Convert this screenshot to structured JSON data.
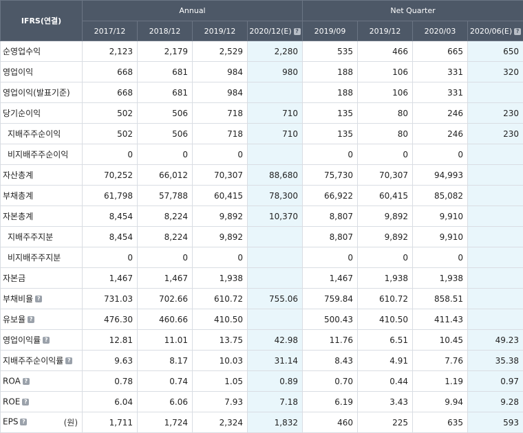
{
  "header": {
    "corner_label": "IFRS(연결)",
    "group_annual": "Annual",
    "group_quarter": "Net Quarter",
    "periods": [
      {
        "label": "2017/12",
        "estimate": false
      },
      {
        "label": "2018/12",
        "estimate": false
      },
      {
        "label": "2019/12",
        "estimate": false
      },
      {
        "label": "2020/12(E)",
        "estimate": true
      },
      {
        "label": "2019/09",
        "estimate": false
      },
      {
        "label": "2019/12",
        "estimate": false
      },
      {
        "label": "2020/03",
        "estimate": false
      },
      {
        "label": "2020/06(E)",
        "estimate": true
      }
    ]
  },
  "rows": [
    {
      "label": "순영업수익",
      "indent": false,
      "help": false,
      "unit": "",
      "values": [
        "2,123",
        "2,179",
        "2,529",
        "2,280",
        "535",
        "466",
        "665",
        "650"
      ]
    },
    {
      "label": "영업이익",
      "indent": false,
      "help": false,
      "unit": "",
      "values": [
        "668",
        "681",
        "984",
        "980",
        "188",
        "106",
        "331",
        "320"
      ]
    },
    {
      "label": "영업이익(발표기준)",
      "indent": false,
      "help": false,
      "unit": "",
      "values": [
        "668",
        "681",
        "984",
        "",
        "188",
        "106",
        "331",
        ""
      ]
    },
    {
      "label": "당기순이익",
      "indent": false,
      "help": false,
      "unit": "",
      "values": [
        "502",
        "506",
        "718",
        "710",
        "135",
        "80",
        "246",
        "230"
      ]
    },
    {
      "label": "지배주주순이익",
      "indent": true,
      "help": false,
      "unit": "",
      "values": [
        "502",
        "506",
        "718",
        "710",
        "135",
        "80",
        "246",
        "230"
      ]
    },
    {
      "label": "비지배주주순이익",
      "indent": true,
      "help": false,
      "unit": "",
      "values": [
        "0",
        "0",
        "0",
        "",
        "0",
        "0",
        "0",
        ""
      ]
    },
    {
      "label": "자산총계",
      "indent": false,
      "help": false,
      "unit": "",
      "values": [
        "70,252",
        "66,012",
        "70,307",
        "88,680",
        "75,730",
        "70,307",
        "94,993",
        ""
      ]
    },
    {
      "label": "부채총계",
      "indent": false,
      "help": false,
      "unit": "",
      "values": [
        "61,798",
        "57,788",
        "60,415",
        "78,300",
        "66,922",
        "60,415",
        "85,082",
        ""
      ]
    },
    {
      "label": "자본총계",
      "indent": false,
      "help": false,
      "unit": "",
      "values": [
        "8,454",
        "8,224",
        "9,892",
        "10,370",
        "8,807",
        "9,892",
        "9,910",
        ""
      ]
    },
    {
      "label": "지배주주지분",
      "indent": true,
      "help": false,
      "unit": "",
      "values": [
        "8,454",
        "8,224",
        "9,892",
        "",
        "8,807",
        "9,892",
        "9,910",
        ""
      ]
    },
    {
      "label": "비지배주주지분",
      "indent": true,
      "help": false,
      "unit": "",
      "values": [
        "0",
        "0",
        "0",
        "",
        "0",
        "0",
        "0",
        ""
      ]
    },
    {
      "label": "자본금",
      "indent": false,
      "help": false,
      "unit": "",
      "values": [
        "1,467",
        "1,467",
        "1,938",
        "",
        "1,467",
        "1,938",
        "1,938",
        ""
      ]
    },
    {
      "label": "부채비율",
      "indent": false,
      "help": true,
      "unit": "",
      "values": [
        "731.03",
        "702.66",
        "610.72",
        "755.06",
        "759.84",
        "610.72",
        "858.51",
        ""
      ]
    },
    {
      "label": "유보율",
      "indent": false,
      "help": true,
      "unit": "",
      "values": [
        "476.30",
        "460.66",
        "410.50",
        "",
        "500.43",
        "410.50",
        "411.43",
        ""
      ]
    },
    {
      "label": "영업이익률",
      "indent": false,
      "help": true,
      "unit": "",
      "values": [
        "12.81",
        "11.01",
        "13.75",
        "42.98",
        "11.76",
        "6.51",
        "10.45",
        "49.23"
      ]
    },
    {
      "label": "지배주주순이익률",
      "indent": false,
      "help": true,
      "unit": "",
      "values": [
        "9.63",
        "8.17",
        "10.03",
        "31.14",
        "8.43",
        "4.91",
        "7.76",
        "35.38"
      ]
    },
    {
      "label": "ROA",
      "indent": false,
      "help": true,
      "unit": "",
      "values": [
        "0.78",
        "0.74",
        "1.05",
        "0.89",
        "0.70",
        "0.44",
        "1.19",
        "0.97"
      ]
    },
    {
      "label": "ROE",
      "indent": false,
      "help": true,
      "unit": "",
      "values": [
        "6.04",
        "6.06",
        "7.93",
        "7.18",
        "6.19",
        "3.43",
        "9.94",
        "9.28"
      ]
    },
    {
      "label": "EPS",
      "indent": false,
      "help": true,
      "unit": "(원)",
      "values": [
        "1,711",
        "1,724",
        "2,324",
        "1,832",
        "460",
        "225",
        "635",
        "593"
      ]
    }
  ],
  "help_glyph": "?",
  "colors": {
    "header_bg": "#4d5867",
    "estimate_bg": "#e9f6fb",
    "grid": "#d9dde3"
  }
}
